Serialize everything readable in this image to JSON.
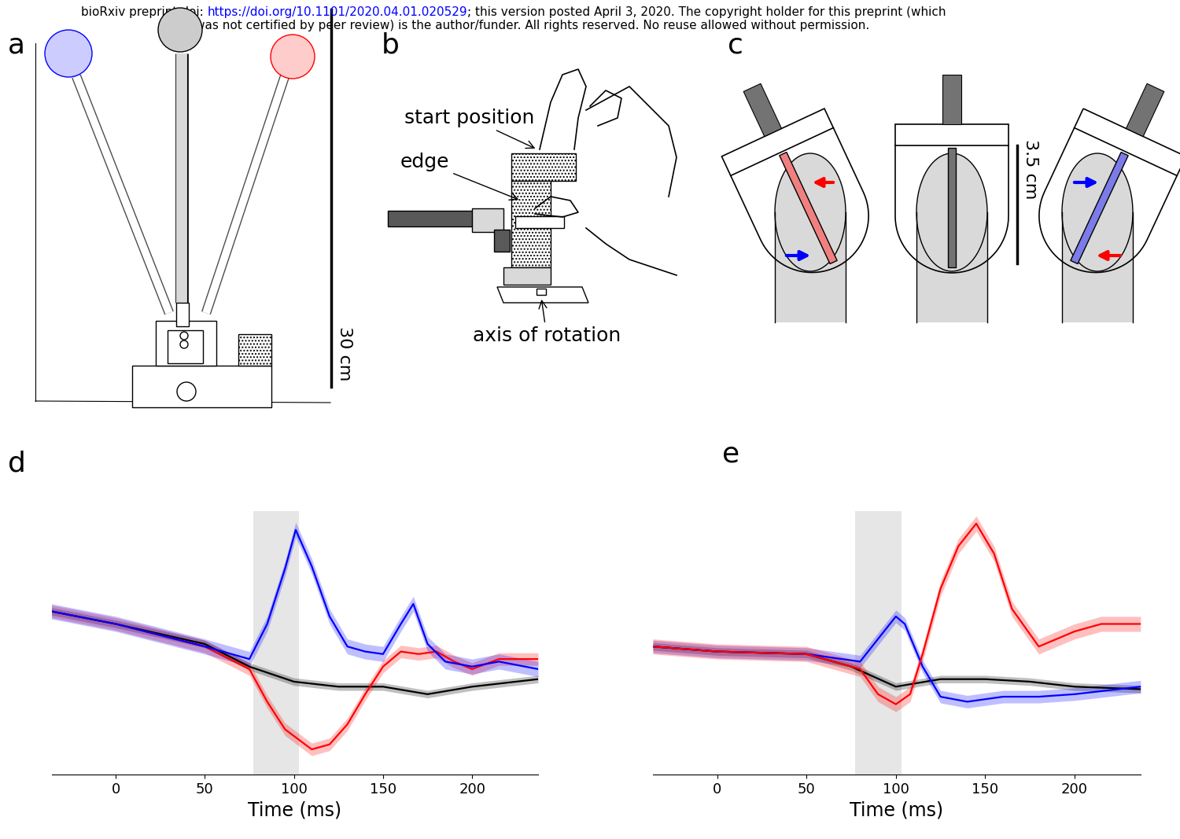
{
  "header": {
    "line1": [
      {
        "text": "bioRxiv preprint doi: ",
        "color": "black"
      },
      {
        "text": "https://doi.org/10.1101/2020.04.01.020529",
        "color": "blue"
      },
      {
        "text": "; this version posted April 3, 2020. The copyright holder for this preprint (which",
        "color": "black"
      }
    ],
    "line2": [
      {
        "text": "was not certified by peer review) is the author/funder. All rights reserved. No reuse allowed without permission.",
        "color": "black"
      }
    ]
  },
  "panels": {
    "a": {
      "label": "a",
      "scale_bar": "30 cm"
    },
    "b": {
      "label": "b",
      "annotations": [
        "start position",
        "edge",
        "axis of rotation"
      ]
    },
    "c": {
      "label": "c",
      "scale_bar": "3.5 cm"
    }
  },
  "chart_data": [
    {
      "panel_label": "d",
      "type": "line",
      "x_label": "Time (ms)",
      "xlim": [
        -36,
        237
      ],
      "xticks": [
        0,
        50,
        100,
        150,
        200
      ],
      "ylim": [
        0,
        10.5
      ],
      "yticks": [],
      "tick_labels": "x",
      "shaded_x": [
        77,
        103
      ],
      "series": [
        {
          "color": "black",
          "error": 0.15,
          "x": [
            -36,
            0,
            50,
            75,
            100,
            125,
            150,
            175,
            200,
            237
          ],
          "values": [
            6.5,
            6.0,
            5.2,
            4.3,
            3.7,
            3.5,
            3.5,
            3.2,
            3.5,
            3.8
          ]
        },
        {
          "color": "red",
          "error": 0.25,
          "x": [
            -36,
            0,
            50,
            75,
            85,
            95,
            110,
            120,
            130,
            140,
            150,
            160,
            170,
            180,
            190,
            200,
            215,
            237
          ],
          "values": [
            6.5,
            6.0,
            5.1,
            4.2,
            2.9,
            1.8,
            1.0,
            1.2,
            2.0,
            3.2,
            4.3,
            4.9,
            4.8,
            4.9,
            4.5,
            4.2,
            4.6,
            4.6
          ]
        },
        {
          "color": "blue",
          "error": 0.3,
          "x": [
            -36,
            0,
            50,
            75,
            85,
            95,
            101,
            110,
            120,
            130,
            140,
            150,
            160,
            167,
            175,
            185,
            200,
            215,
            237
          ],
          "values": [
            6.5,
            6.0,
            5.1,
            4.6,
            6.0,
            8.2,
            9.75,
            8.3,
            6.3,
            5.1,
            4.9,
            4.8,
            6.0,
            6.8,
            5.2,
            4.5,
            4.3,
            4.5,
            4.2
          ]
        }
      ]
    },
    {
      "panel_label": "e",
      "type": "line",
      "x_label": "Time (ms)",
      "xlim": [
        -36,
        237
      ],
      "xticks": [
        0,
        50,
        100,
        150,
        200
      ],
      "ylim": [
        0,
        10.5
      ],
      "yticks": [],
      "tick_labels": "x",
      "shaded_x": [
        77,
        103
      ],
      "series": [
        {
          "color": "black",
          "error": 0.15,
          "x": [
            -36,
            0,
            50,
            75,
            100,
            125,
            150,
            175,
            200,
            237
          ],
          "values": [
            5.1,
            4.9,
            4.8,
            4.3,
            3.5,
            3.8,
            3.8,
            3.7,
            3.5,
            3.4
          ]
        },
        {
          "color": "blue",
          "error": 0.25,
          "x": [
            -36,
            0,
            50,
            80,
            90,
            100,
            105,
            115,
            125,
            140,
            160,
            180,
            200,
            237
          ],
          "values": [
            5.1,
            4.9,
            4.8,
            4.5,
            5.4,
            6.3,
            6.0,
            4.3,
            3.1,
            2.9,
            3.1,
            3.1,
            3.2,
            3.5
          ]
        },
        {
          "color": "red",
          "error": 0.3,
          "x": [
            -36,
            0,
            50,
            80,
            90,
            100,
            108,
            115,
            125,
            135,
            145,
            155,
            165,
            180,
            190,
            200,
            215,
            237
          ],
          "values": [
            5.1,
            4.9,
            4.8,
            4.2,
            3.2,
            2.8,
            3.2,
            4.8,
            7.4,
            9.1,
            10.0,
            8.8,
            6.6,
            5.1,
            5.4,
            5.7,
            6.0,
            6.0
          ]
        }
      ]
    }
  ]
}
